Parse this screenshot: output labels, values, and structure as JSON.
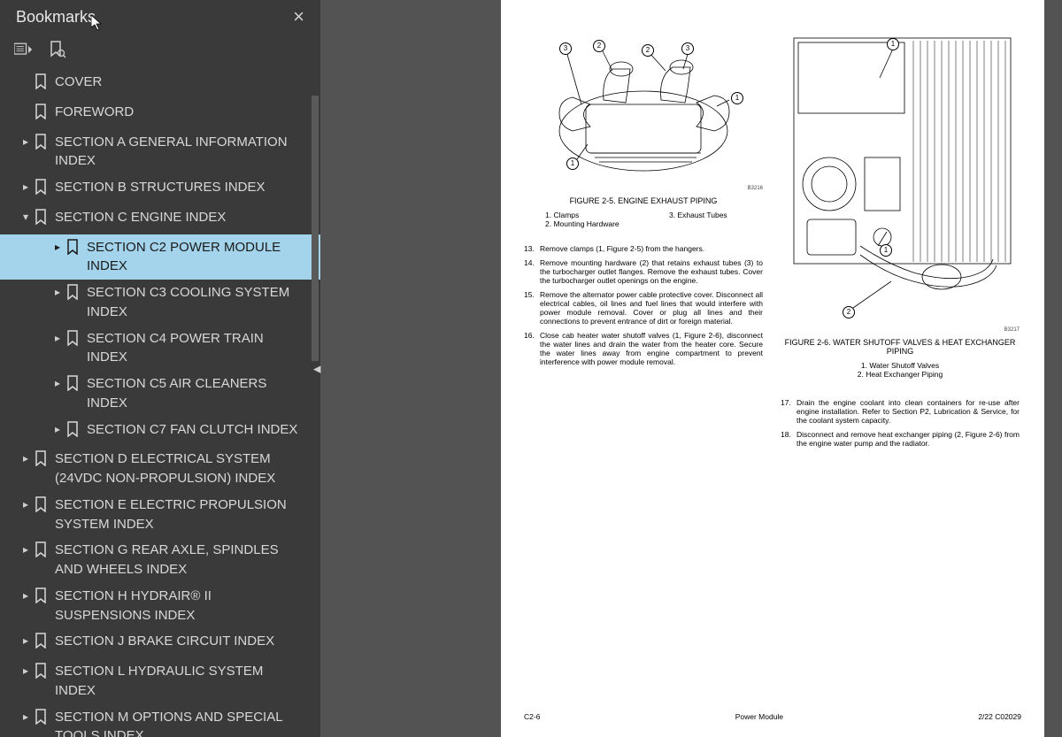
{
  "sidebar": {
    "title": "Bookmarks",
    "bookmarks": [
      {
        "label": "COVER",
        "level": 0,
        "arrow": "none",
        "selected": false
      },
      {
        "label": "FOREWORD",
        "level": 0,
        "arrow": "none",
        "selected": false
      },
      {
        "label": "SECTION A GENERAL INFORMATION INDEX",
        "level": 0,
        "arrow": "right",
        "selected": false
      },
      {
        "label": "SECTION B STRUCTURES INDEX",
        "level": 0,
        "arrow": "right",
        "selected": false
      },
      {
        "label": "SECTION C ENGINE INDEX",
        "level": 0,
        "arrow": "down",
        "selected": false
      },
      {
        "label": "SECTION C2 POWER MODULE INDEX",
        "level": 1,
        "arrow": "right",
        "selected": true
      },
      {
        "label": "SECTION C3 COOLING SYSTEM INDEX",
        "level": 1,
        "arrow": "right",
        "selected": false
      },
      {
        "label": "SECTION C4 POWER TRAIN INDEX",
        "level": 1,
        "arrow": "right",
        "selected": false
      },
      {
        "label": "SECTION C5 AIR CLEANERS INDEX",
        "level": 1,
        "arrow": "right",
        "selected": false
      },
      {
        "label": "SECTION C7 FAN CLUTCH INDEX",
        "level": 1,
        "arrow": "right",
        "selected": false
      },
      {
        "label": "SECTION D ELECTRICAL SYSTEM (24VDC NON-PROPULSION) INDEX",
        "level": 0,
        "arrow": "right",
        "selected": false
      },
      {
        "label": "SECTION E ELECTRIC PROPULSION SYSTEM INDEX",
        "level": 0,
        "arrow": "right",
        "selected": false
      },
      {
        "label": "SECTION G REAR AXLE, SPINDLES AND WHEELS INDEX",
        "level": 0,
        "arrow": "right",
        "selected": false
      },
      {
        "label": "SECTION H HYDRAIR® II SUSPENSIONS INDEX",
        "level": 0,
        "arrow": "right",
        "selected": false
      },
      {
        "label": "SECTION J BRAKE CIRCUIT INDEX",
        "level": 0,
        "arrow": "right",
        "selected": false
      },
      {
        "label": "SECTION L HYDRAULIC SYSTEM INDEX",
        "level": 0,
        "arrow": "right",
        "selected": false
      },
      {
        "label": "SECTION M OPTIONS AND SPECIAL TOOLS INDEX",
        "level": 0,
        "arrow": "right",
        "selected": false
      }
    ]
  },
  "page": {
    "figure_left": {
      "caption": "FIGURE 2-5. ENGINE EXHAUST PIPING",
      "code": "B3216",
      "legend_col1_1": "1. Clamps",
      "legend_col1_2": "2. Mounting Hardware",
      "legend_col2_1": "3. Exhaust Tubes",
      "callouts": [
        "3",
        "2",
        "2",
        "3",
        "1",
        "1"
      ]
    },
    "figure_right": {
      "caption": "FIGURE 2-6. WATER SHUTOFF VALVES & HEAT EXCHANGER PIPING",
      "code": "B3217",
      "legend_1": "1. Water Shutoff Valves",
      "legend_2": "2. Heat Exchanger Piping",
      "callouts": [
        "1",
        "1",
        "2"
      ]
    },
    "steps_left": [
      {
        "n": "13.",
        "t": "Remove clamps (1, Figure 2-5) from the hangers."
      },
      {
        "n": "14.",
        "t": "Remove mounting hardware (2) that retains exhaust tubes (3) to the turbocharger outlet flanges. Remove the exhaust tubes. Cover the turbocharger outlet openings on the engine."
      },
      {
        "n": "15.",
        "t": "Remove the alternator power cable protective cover. Disconnect all electrical cables, oil lines and fuel lines that would interfere with power module removal. Cover or plug all lines and their connections to prevent entrance of dirt or foreign material."
      },
      {
        "n": "16.",
        "t": "Close cab heater water shutoff valves (1, Figure 2-6), disconnect the water lines and drain the water from the heater core. Secure the water lines away from engine compartment to prevent interference with power module removal."
      }
    ],
    "steps_right": [
      {
        "n": "17.",
        "t": "Drain the engine coolant into clean containers for re-use after engine installation. Refer to Section P2, Lubrication & Service, for the coolant system capacity."
      },
      {
        "n": "18.",
        "t": "Disconnect and remove heat exchanger piping (2, Figure 2-6) from the engine water pump and the radiator."
      }
    ],
    "footer": {
      "left": "C2-6",
      "center": "Power Module",
      "right": "2/22  C02029"
    }
  },
  "colors": {
    "sidebar_bg": "#3a3a3a",
    "selected_bg": "#a3d4ec",
    "content_bg": "#535353",
    "page_bg": "#ffffff"
  }
}
